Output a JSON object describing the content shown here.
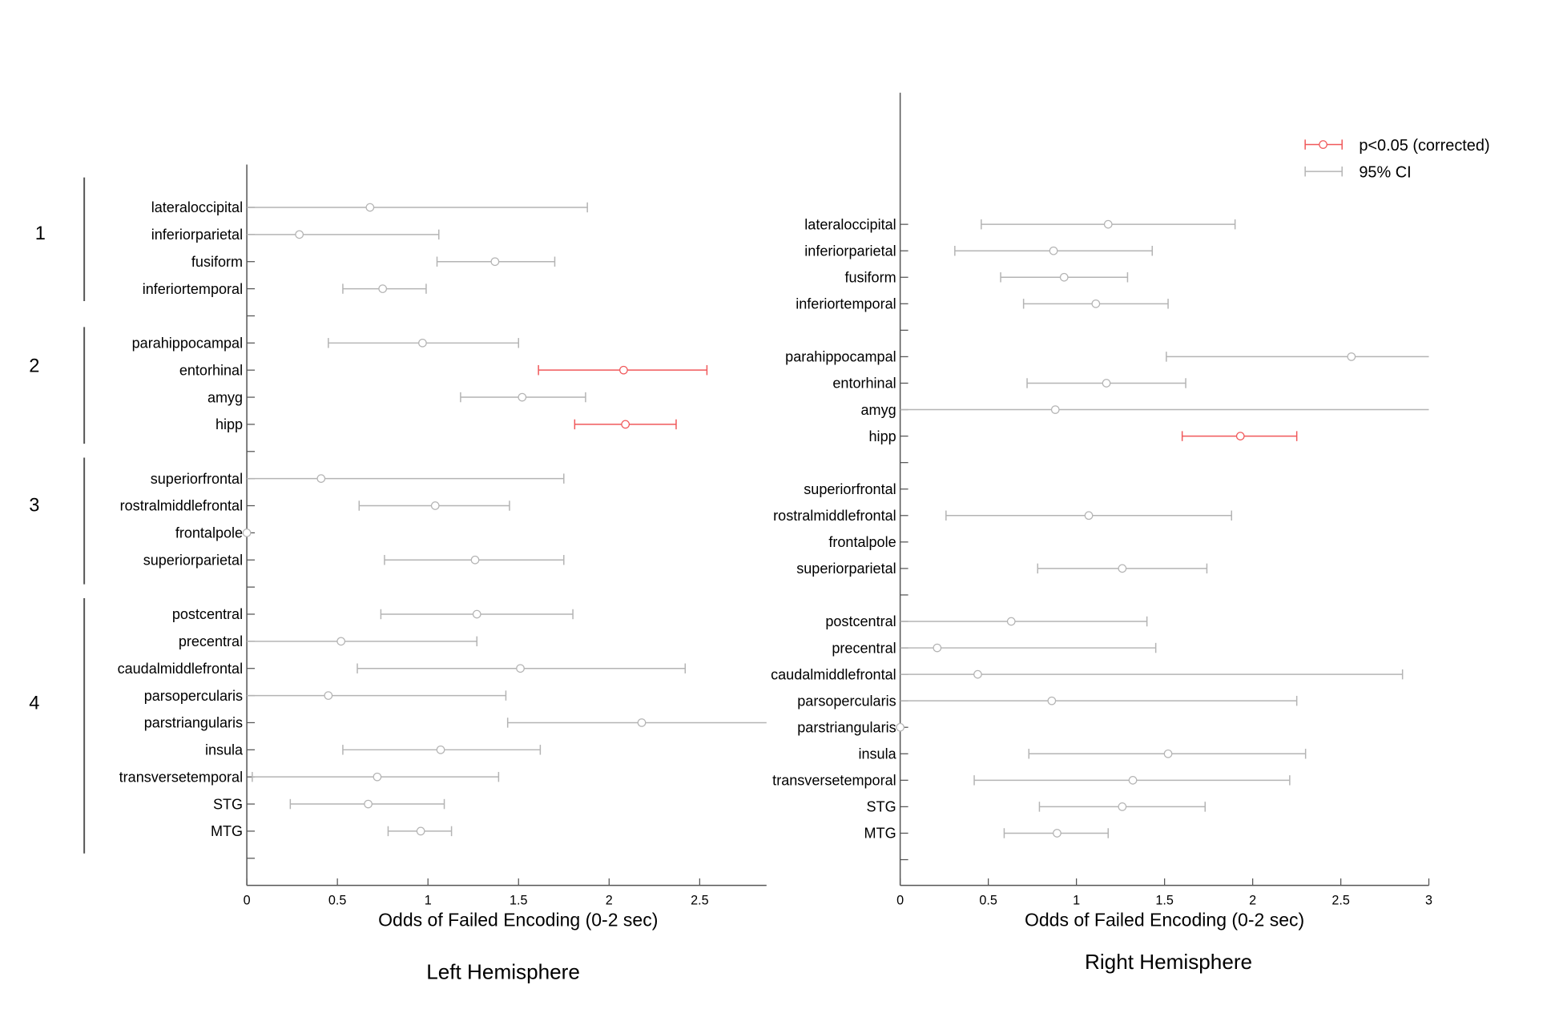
{
  "colors": {
    "sig": "#f0585a",
    "ci": "#b4b4b4",
    "axis": "#555555"
  },
  "legend": {
    "sig_label": "p<0.05 (corrected)",
    "ci_label": "95% CI",
    "placement": "top-right"
  },
  "groups": [
    {
      "label": "1"
    },
    {
      "label": "2"
    },
    {
      "label": "3"
    },
    {
      "label": "4"
    }
  ],
  "chart_data": [
    {
      "type": "scatter",
      "title": "Left Hemisphere",
      "xlabel": "Odds of Failed Encoding (0-2 sec)",
      "ylabel": "",
      "xlim": [
        0,
        2.87
      ],
      "xticks": [
        "0",
        "0.5",
        "1",
        "1.5",
        "2",
        "2.5"
      ],
      "xtick_values": [
        0,
        0.5,
        1,
        1.5,
        2,
        2.5
      ],
      "rows": [
        {
          "label": "lateraloccipital",
          "mean": 0.68,
          "lo": 0,
          "hi": 1.88,
          "sig": false
        },
        {
          "label": "inferiorparietal",
          "mean": 0.29,
          "lo": 0,
          "hi": 1.06,
          "sig": false
        },
        {
          "label": "fusiform",
          "mean": 1.37,
          "lo": 1.05,
          "hi": 1.7,
          "sig": false
        },
        {
          "label": "inferiortemporal",
          "mean": 0.75,
          "lo": 0.53,
          "hi": 0.99,
          "sig": false
        },
        null,
        {
          "label": "parahippocampal",
          "mean": 0.97,
          "lo": 0.45,
          "hi": 1.5,
          "sig": false
        },
        {
          "label": "entorhinal",
          "mean": 2.08,
          "lo": 1.61,
          "hi": 2.54,
          "sig": true
        },
        {
          "label": "amyg",
          "mean": 1.52,
          "lo": 1.18,
          "hi": 1.87,
          "sig": false
        },
        {
          "label": "hipp",
          "mean": 2.09,
          "lo": 1.81,
          "hi": 2.37,
          "sig": true
        },
        null,
        {
          "label": "superiorfrontal",
          "mean": 0.41,
          "lo": 0,
          "hi": 1.75,
          "sig": false
        },
        {
          "label": "rostralmiddlefrontal",
          "mean": 1.04,
          "lo": 0.62,
          "hi": 1.45,
          "sig": false
        },
        {
          "label": "frontalpole",
          "mean": 0,
          "lo": 0,
          "hi": 0,
          "sig": false
        },
        {
          "label": "superiorparietal",
          "mean": 1.26,
          "lo": 0.76,
          "hi": 1.75,
          "sig": false
        },
        null,
        {
          "label": "postcentral",
          "mean": 1.27,
          "lo": 0.74,
          "hi": 1.8,
          "sig": false
        },
        {
          "label": "precentral",
          "mean": 0.52,
          "lo": 0,
          "hi": 1.27,
          "sig": false
        },
        {
          "label": "caudalmiddlefrontal",
          "mean": 1.51,
          "lo": 0.61,
          "hi": 2.42,
          "sig": false
        },
        {
          "label": "parsopercularis",
          "mean": 0.45,
          "lo": 0,
          "hi": 1.43,
          "sig": false
        },
        {
          "label": "parstriangularis",
          "mean": 2.18,
          "lo": 1.44,
          "hi": 3.2,
          "sig": false
        },
        {
          "label": "insula",
          "mean": 1.07,
          "lo": 0.53,
          "hi": 1.62,
          "sig": false
        },
        {
          "label": "transversetemporal",
          "mean": 0.72,
          "lo": 0.03,
          "hi": 1.39,
          "sig": false
        },
        {
          "label": "STG",
          "mean": 0.67,
          "lo": 0.24,
          "hi": 1.09,
          "sig": false
        },
        {
          "label": "MTG",
          "mean": 0.96,
          "lo": 0.78,
          "hi": 1.13,
          "sig": false
        },
        null
      ]
    },
    {
      "type": "scatter",
      "title": "Right Hemisphere",
      "xlabel": "Odds of Failed Encoding (0-2 sec)",
      "ylabel": "",
      "xlim": [
        0,
        3
      ],
      "xticks": [
        "0",
        "0.5",
        "1",
        "1.5",
        "2",
        "2.5",
        "3"
      ],
      "xtick_values": [
        0,
        0.5,
        1,
        1.5,
        2,
        2.5,
        3
      ],
      "rows": [
        {
          "label": "lateraloccipital",
          "mean": 1.18,
          "lo": 0.46,
          "hi": 1.9,
          "sig": false
        },
        {
          "label": "inferiorparietal",
          "mean": 0.87,
          "lo": 0.31,
          "hi": 1.43,
          "sig": false
        },
        {
          "label": "fusiform",
          "mean": 0.93,
          "lo": 0.57,
          "hi": 1.29,
          "sig": false
        },
        {
          "label": "inferiortemporal",
          "mean": 1.11,
          "lo": 0.7,
          "hi": 1.52,
          "sig": false
        },
        null,
        {
          "label": "parahippocampal",
          "mean": 2.56,
          "lo": 1.51,
          "hi": 3.2,
          "sig": false
        },
        {
          "label": "entorhinal",
          "mean": 1.17,
          "lo": 0.72,
          "hi": 1.62,
          "sig": false
        },
        {
          "label": "amyg",
          "mean": 0.88,
          "lo": 0,
          "hi": 3.2,
          "sig": false
        },
        {
          "label": "hipp",
          "mean": 1.93,
          "lo": 1.6,
          "hi": 2.25,
          "sig": true
        },
        null,
        {
          "label": "superiorfrontal",
          "mean": null,
          "lo": null,
          "hi": null,
          "sig": false
        },
        {
          "label": "rostralmiddlefrontal",
          "mean": 1.07,
          "lo": 0.26,
          "hi": 1.88,
          "sig": false
        },
        {
          "label": "frontalpole",
          "mean": null,
          "lo": null,
          "hi": null,
          "sig": false
        },
        {
          "label": "superiorparietal",
          "mean": 1.26,
          "lo": 0.78,
          "hi": 1.74,
          "sig": false
        },
        null,
        {
          "label": "postcentral",
          "mean": 0.63,
          "lo": 0,
          "hi": 1.4,
          "sig": false
        },
        {
          "label": "precentral",
          "mean": 0.21,
          "lo": 0,
          "hi": 1.45,
          "sig": false
        },
        {
          "label": "caudalmiddlefrontal",
          "mean": 0.44,
          "lo": 0,
          "hi": 2.85,
          "sig": false
        },
        {
          "label": "parsopercularis",
          "mean": 0.86,
          "lo": 0,
          "hi": 2.25,
          "sig": false
        },
        {
          "label": "parstriangularis",
          "mean": 0,
          "lo": 0,
          "hi": 0,
          "sig": false
        },
        {
          "label": "insula",
          "mean": 1.52,
          "lo": 0.73,
          "hi": 2.3,
          "sig": false
        },
        {
          "label": "transversetemporal",
          "mean": 1.32,
          "lo": 0.42,
          "hi": 2.21,
          "sig": false
        },
        {
          "label": "STG",
          "mean": 1.26,
          "lo": 0.79,
          "hi": 1.73,
          "sig": false
        },
        {
          "label": "MTG",
          "mean": 0.89,
          "lo": 0.59,
          "hi": 1.18,
          "sig": false
        },
        null
      ]
    }
  ]
}
